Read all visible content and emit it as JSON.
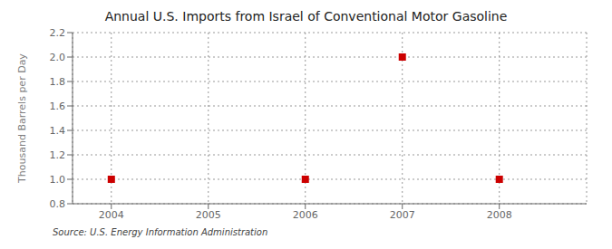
{
  "chart_data": {
    "type": "scatter",
    "title": "Annual U.S. Imports from Israel of Conventional Motor Gasoline",
    "ylabel": "Thousand Barrels per Day",
    "source": "Source: U.S. Energy Information Administration",
    "x": [
      2004,
      2006,
      2007,
      2008
    ],
    "values": [
      1.0,
      1.0,
      2.0,
      1.0
    ],
    "color": "#cc0000",
    "marker": "square",
    "xlim": [
      2003.6,
      2008.9
    ],
    "xticks": [
      2004,
      2005,
      2006,
      2007,
      2008
    ],
    "ylim": [
      0.8,
      2.2
    ],
    "yticks": [
      0.8,
      {
        "value": 1.0,
        "label": "1.0"
      },
      1.2,
      1.4,
      1.6,
      1.8,
      {
        "value": 2.0,
        "label": "2.0"
      },
      2.2
    ],
    "grid": true
  }
}
